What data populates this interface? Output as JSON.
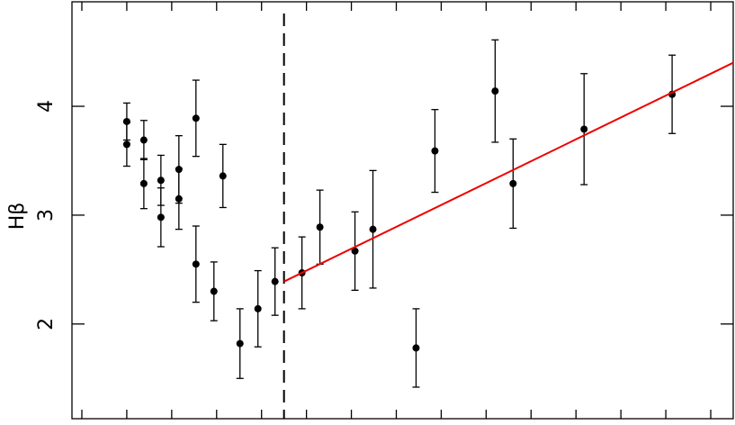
{
  "chart_data": {
    "type": "scatter",
    "ylabel": "Hβ",
    "xlim": [
      -0.22,
      14.5
    ],
    "ylim": [
      1.13,
      4.96
    ],
    "xticks": [
      0,
      1,
      2,
      3,
      4,
      5,
      6,
      7,
      8,
      9,
      10,
      11,
      12,
      13,
      14
    ],
    "yticks": [
      2,
      3,
      4
    ],
    "vline_x": 4.5,
    "series": [
      {
        "type": "scatter",
        "color": "#000000",
        "x": [
          1.0,
          1.0,
          1.38,
          1.38,
          1.76,
          1.76,
          2.16,
          2.16,
          2.54,
          2.54,
          2.94,
          3.14,
          3.52,
          3.92,
          4.3,
          4.9,
          5.3,
          6.08,
          6.48,
          7.44,
          7.86,
          9.2,
          9.6,
          11.18,
          13.14
        ],
        "values": [
          3.86,
          3.65,
          3.69,
          3.29,
          3.32,
          2.98,
          3.42,
          3.15,
          3.89,
          2.55,
          2.3,
          3.36,
          1.82,
          2.14,
          2.39,
          2.47,
          2.89,
          2.67,
          2.87,
          1.78,
          3.59,
          4.14,
          3.29,
          3.79,
          4.11
        ],
        "errors": [
          0.17,
          0.2,
          0.18,
          0.23,
          0.23,
          0.27,
          0.31,
          0.28,
          0.35,
          0.35,
          0.27,
          0.29,
          0.32,
          0.35,
          0.31,
          0.33,
          0.34,
          0.36,
          0.54,
          0.36,
          0.38,
          0.47,
          0.41,
          0.51,
          0.36
        ]
      },
      {
        "type": "line",
        "color": "#ee0000",
        "x": [
          4.5,
          14.5
        ],
        "values": [
          2.39,
          4.4
        ]
      }
    ]
  }
}
